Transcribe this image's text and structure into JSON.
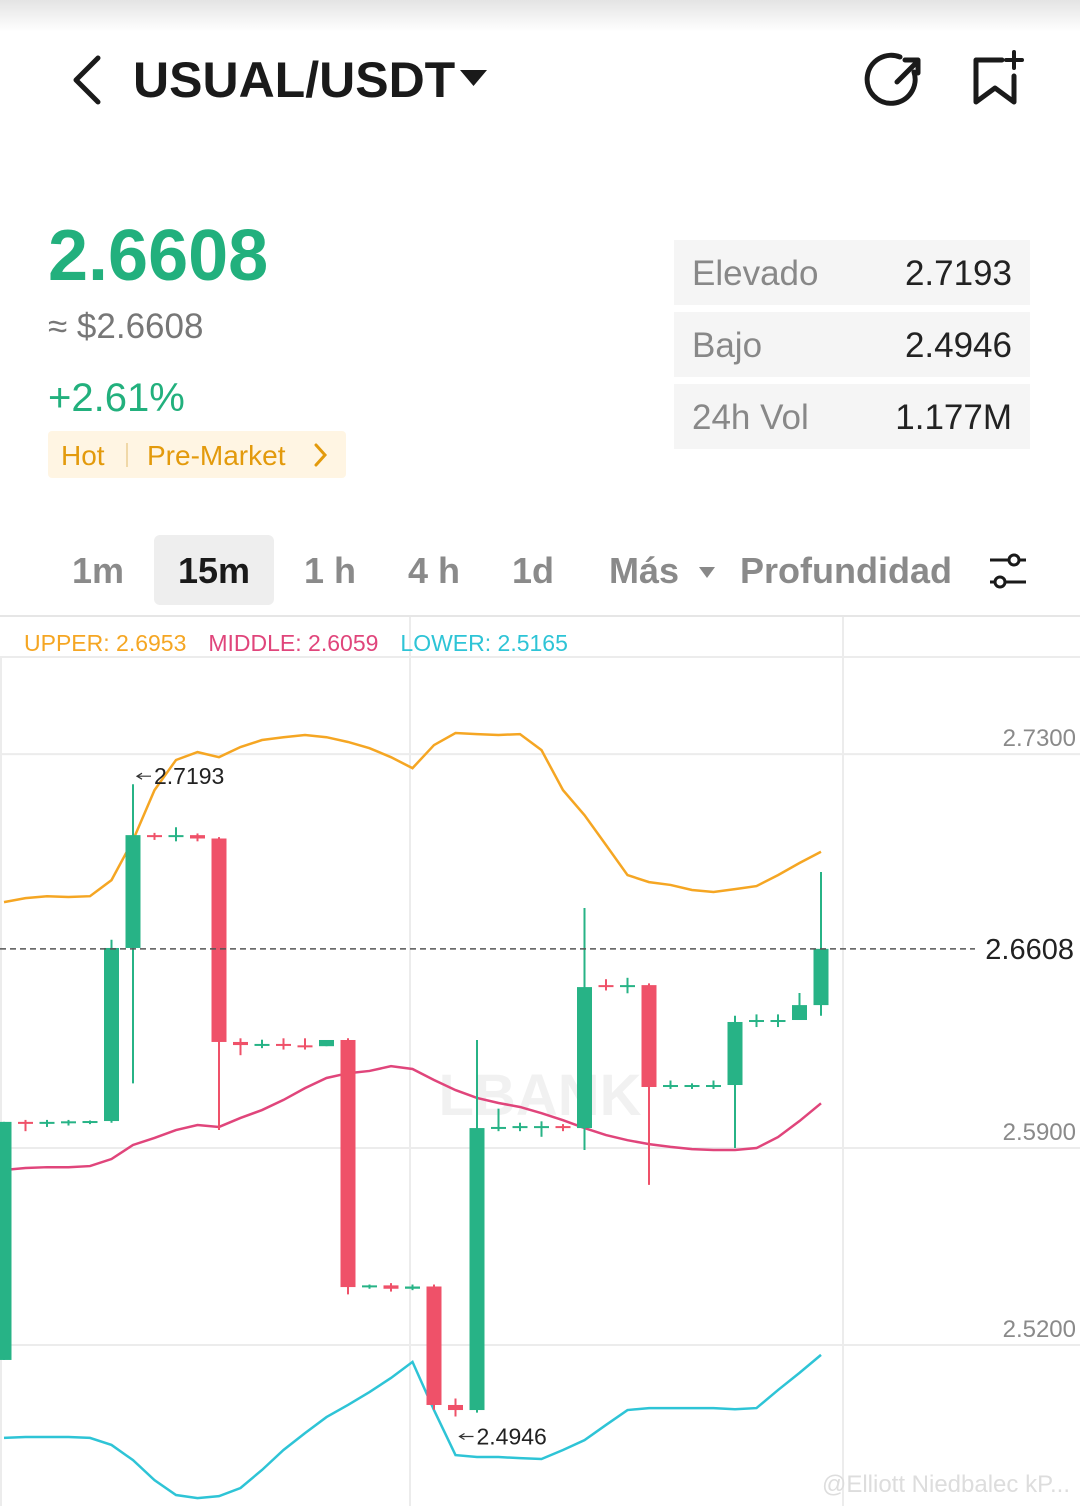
{
  "header": {
    "pair": "USUAL/USDT"
  },
  "ticker": {
    "price": "2.6608",
    "fiat_price": "≈ $2.6608",
    "change": "+2.61%",
    "tags": [
      "Hot",
      "Pre-Market"
    ]
  },
  "stats": [
    {
      "label": "Elevado",
      "value": "2.7193"
    },
    {
      "label": "Bajo",
      "value": "2.4946"
    },
    {
      "label": "24h Vol",
      "value": "1.177M"
    }
  ],
  "tabs": [
    "1m",
    "15m",
    "1 h",
    "4 h",
    "1d",
    "Más",
    "Profundidad"
  ],
  "logo_watermark": "LBANK",
  "watermark": "@Elliott Niedbalec kP...",
  "chart_data": {
    "type": "candlestick",
    "open": [
      2.5147,
      2.5993,
      2.5988,
      2.599,
      2.5993,
      2.5996,
      2.6611,
      2.7012,
      2.7005,
      2.7012,
      2.7,
      2.6277,
      2.6266,
      2.627,
      2.6265,
      2.6262,
      2.6284,
      2.5406,
      2.5412,
      2.54,
      2.5408,
      2.4987,
      2.4969,
      2.5971,
      2.5975,
      2.5978,
      2.5978,
      2.5971,
      2.6479,
      2.6472,
      2.6479,
      2.6117,
      2.612,
      2.612,
      2.6124,
      2.6348,
      2.6352,
      2.6355,
      2.6408
    ],
    "high": [
      2.5993,
      2.6,
      2.6,
      2.6,
      2.5998,
      2.664,
      2.7193,
      2.702,
      2.704,
      2.7018,
      2.7005,
      2.629,
      2.6285,
      2.629,
      2.629,
      2.6284,
      2.629,
      2.5415,
      2.542,
      2.5415,
      2.5415,
      2.501,
      2.6284,
      2.604,
      2.599,
      2.5995,
      2.5985,
      2.6753,
      2.65,
      2.6505,
      2.6485,
      2.614,
      2.613,
      2.614,
      2.637,
      2.6375,
      2.6375,
      2.6451,
      2.6881
    ],
    "low": [
      2.5147,
      2.596,
      2.5975,
      2.598,
      2.5985,
      2.599,
      2.613,
      2.6995,
      2.699,
      2.699,
      2.5964,
      2.623,
      2.6255,
      2.625,
      2.625,
      2.6262,
      2.538,
      2.54,
      2.539,
      2.5395,
      2.497,
      2.4946,
      2.496,
      2.596,
      2.596,
      2.594,
      2.596,
      2.5893,
      2.646,
      2.645,
      2.5769,
      2.611,
      2.611,
      2.611,
      2.59,
      2.633,
      2.633,
      2.6355,
      2.637
    ],
    "close": [
      2.5993,
      2.5988,
      2.5993,
      2.5995,
      2.5996,
      2.6611,
      2.7012,
      2.7005,
      2.7012,
      2.7,
      2.6277,
      2.6266,
      2.627,
      2.6265,
      2.6262,
      2.6284,
      2.5406,
      2.5412,
      2.54,
      2.5408,
      2.4987,
      2.4969,
      2.5971,
      2.5975,
      2.5978,
      2.5978,
      2.5971,
      2.6472,
      2.6472,
      2.6479,
      2.6117,
      2.6124,
      2.6124,
      2.6124,
      2.6348,
      2.6355,
      2.6355,
      2.6408,
      2.6608
    ],
    "up_color": "#27b386",
    "down_color": "#ef5169",
    "series": [
      {
        "name": "UPPER: 2.6953",
        "color": "#f5a623",
        "values": [
          2.6774,
          2.6788,
          2.6795,
          2.6792,
          2.6795,
          2.6852,
          2.6994,
          2.7172,
          2.7279,
          2.7307,
          2.7289,
          2.7325,
          2.735,
          2.736,
          2.7368,
          2.736,
          2.7343,
          2.7321,
          2.7289,
          2.725,
          2.7332,
          2.7375,
          2.7371,
          2.7368,
          2.7371,
          2.7314,
          2.7172,
          2.7083,
          2.6977,
          2.687,
          2.6845,
          2.6835,
          2.6817,
          2.681,
          2.682,
          2.6831,
          2.687,
          2.6913,
          2.6953
        ]
      },
      {
        "name": "MIDDLE: 2.6059",
        "color": "#e0457b",
        "values": [
          2.5822,
          2.5829,
          2.5832,
          2.5832,
          2.5836,
          2.5861,
          2.5911,
          2.5936,
          2.5964,
          2.5982,
          2.5975,
          2.6007,
          2.6035,
          2.6071,
          2.6113,
          2.6149,
          2.6166,
          2.6174,
          2.6191,
          2.6181,
          2.6142,
          2.6106,
          2.6078,
          2.606,
          2.6046,
          2.6024,
          2.5999,
          2.5971,
          2.5946,
          2.5928,
          2.5914,
          2.5904,
          2.5896,
          2.5893,
          2.5893,
          2.59,
          2.5939,
          2.5996,
          2.6059
        ]
      },
      {
        "name": "LOWER: 2.5165",
        "color": "#2ec4d6",
        "values": [
          2.487,
          2.4873,
          2.4873,
          2.4873,
          2.487,
          2.4845,
          2.4791,
          2.472,
          2.4667,
          2.4656,
          2.4663,
          2.4692,
          2.4756,
          2.4827,
          2.4887,
          2.4944,
          2.4987,
          2.5033,
          2.5083,
          2.514,
          2.4969,
          2.4809,
          2.4802,
          2.4802,
          2.4798,
          2.4795,
          2.4827,
          2.4862,
          2.4916,
          2.4969,
          2.4976,
          2.4976,
          2.4976,
          2.4976,
          2.4972,
          2.4976,
          2.504,
          2.5101,
          2.5165
        ]
      }
    ],
    "ylim": [
      2.4628,
      2.7645
    ],
    "yticks": [
      {
        "value": 2.73,
        "label": "2.7300"
      },
      {
        "value": 2.59,
        "label": "2.5900"
      },
      {
        "value": 2.52,
        "label": "2.5200"
      }
    ],
    "grid": true,
    "last_price": 2.6608,
    "max_price": 2.7193,
    "min_price": 2.4946
  }
}
